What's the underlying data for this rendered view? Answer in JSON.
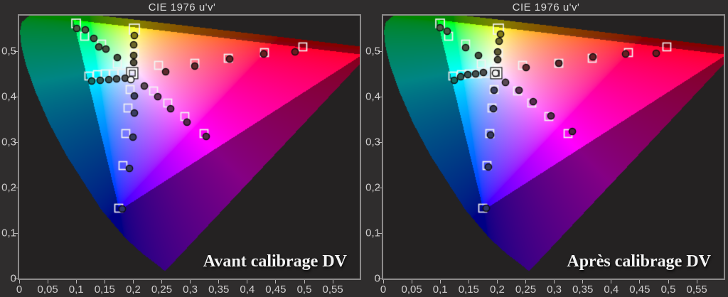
{
  "page": {
    "background": "#2f2d2d"
  },
  "cie": {
    "locus_uv": [
      [
        0.2558,
        0.0159
      ],
      [
        0.2443,
        0.028
      ],
      [
        0.2161,
        0.0549
      ],
      [
        0.1877,
        0.0871
      ],
      [
        0.1441,
        0.151
      ],
      [
        0.0828,
        0.2708
      ],
      [
        0.0521,
        0.3427
      ],
      [
        0.0282,
        0.4117
      ],
      [
        0.0119,
        0.4699
      ],
      [
        0.0035,
        0.5131
      ],
      [
        0.0014,
        0.5432
      ],
      [
        0.0046,
        0.5639
      ],
      [
        0.0231,
        0.5837
      ],
      [
        0.0501,
        0.5868
      ],
      [
        0.0792,
        0.5856
      ],
      [
        0.1127,
        0.5821
      ],
      [
        0.1531,
        0.5766
      ],
      [
        0.2026,
        0.5693
      ],
      [
        0.2623,
        0.5604
      ],
      [
        0.3315,
        0.5501
      ],
      [
        0.4034,
        0.5393
      ],
      [
        0.4692,
        0.5296
      ],
      [
        0.5202,
        0.5219
      ],
      [
        0.583,
        0.5125
      ],
      [
        0.6234,
        0.5065
      ]
    ],
    "display_gamut_uv": [
      [
        0.6022,
        0.4922
      ],
      [
        0.0948,
        0.5688
      ],
      [
        0.1758,
        0.15
      ]
    ],
    "outside_gamut_dim": 0.52
  },
  "chart_data": [
    {
      "type": "scatter",
      "title": "CIE 1976 u'v'",
      "annotation": "Avant calibrage DV",
      "xlabel": "",
      "ylabel": "",
      "x_ticks": [
        "0",
        "0,05",
        "0,1",
        "0,15",
        "0,2",
        "0,25",
        "0,3",
        "0,35",
        "0,4",
        "0,45",
        "0,5",
        "0,55"
      ],
      "y_ticks": [
        "0",
        "0,1",
        "0,2",
        "0,3",
        "0,4",
        "0,5"
      ],
      "xlim": [
        0,
        0.597
      ],
      "ylim": [
        0,
        0.578
      ],
      "grid": false,
      "legend": "none",
      "series": [
        {
          "name": "targets",
          "marker": "square",
          "color": "#f2f2f2",
          "points": [
            {
              "u": 0.0998,
              "v": 0.5609,
              "size": 12
            },
            {
              "u": 0.1147,
              "v": 0.5328
            },
            {
              "u": 0.1446,
              "v": 0.5156
            },
            {
              "u": 0.1721,
              "v": 0.4719
            },
            {
              "u": 0.202,
              "v": 0.5484,
              "size": 14
            },
            {
              "u": 0.202,
              "v": 0.4953
            },
            {
              "u": 0.1995,
              "v": 0.4625
            },
            {
              "u": 0.1222,
              "v": 0.4453
            },
            {
              "u": 0.1372,
              "v": 0.4484
            },
            {
              "u": 0.1509,
              "v": 0.45
            },
            {
              "u": 0.1658,
              "v": 0.45
            },
            {
              "u": 0.1808,
              "v": 0.4516
            },
            {
              "u": 0.2444,
              "v": 0.4688
            },
            {
              "u": 0.308,
              "v": 0.4734
            },
            {
              "u": 0.3666,
              "v": 0.4844
            },
            {
              "u": 0.4302,
              "v": 0.4969
            },
            {
              "u": 0.4975,
              "v": 0.5094
            },
            {
              "u": 0.2357,
              "v": 0.4125
            },
            {
              "u": 0.2606,
              "v": 0.3859
            },
            {
              "u": 0.2905,
              "v": 0.3563
            },
            {
              "u": 0.3242,
              "v": 0.3188
            },
            {
              "u": 0.1945,
              "v": 0.4156
            },
            {
              "u": 0.1908,
              "v": 0.375
            },
            {
              "u": 0.187,
              "v": 0.3188
            },
            {
              "u": 0.182,
              "v": 0.2484
            },
            {
              "u": 0.1746,
              "v": 0.1547
            }
          ]
        },
        {
          "name": "white-point-target",
          "marker": "square-bold",
          "color": "#ffffff",
          "points": [
            {
              "u": 0.1983,
              "v": 0.4516,
              "size": 12
            }
          ]
        },
        {
          "name": "measurements",
          "marker": "circle",
          "points": [
            {
              "u": 0.101,
              "v": 0.55,
              "color": "#4a5a44"
            },
            {
              "u": 0.116,
              "v": 0.5469,
              "color": "#4a5a44"
            },
            {
              "u": 0.1309,
              "v": 0.5281,
              "color": "#465741"
            },
            {
              "u": 0.1397,
              "v": 0.5094,
              "color": "#43533f"
            },
            {
              "u": 0.1521,
              "v": 0.5047,
              "color": "#43533f"
            },
            {
              "u": 0.1721,
              "v": 0.4859,
              "color": "#40503d"
            },
            {
              "u": 0.202,
              "v": 0.5344,
              "color": "#837d14"
            },
            {
              "u": 0.2008,
              "v": 0.5141,
              "color": "#6d682b"
            },
            {
              "u": 0.2008,
              "v": 0.4906,
              "color": "#5e5a33"
            },
            {
              "u": 0.2008,
              "v": 0.475,
              "color": "#514e3a"
            },
            {
              "u": 0.1272,
              "v": 0.4344,
              "color": "#116b60"
            },
            {
              "u": 0.1421,
              "v": 0.4359,
              "color": "#2f5c55"
            },
            {
              "u": 0.1571,
              "v": 0.4375,
              "color": "#3a5551"
            },
            {
              "u": 0.1708,
              "v": 0.4391,
              "color": "#44514f"
            },
            {
              "u": 0.1858,
              "v": 0.4406,
              "color": "#4c4f50"
            },
            {
              "u": 0.1958,
              "v": 0.4375,
              "color": "#f4f4f4"
            },
            {
              "u": 0.2195,
              "v": 0.4234,
              "color": "#5c4a56"
            },
            {
              "u": 0.2569,
              "v": 0.4547,
              "color": "#5e2a2e"
            },
            {
              "u": 0.308,
              "v": 0.4672,
              "color": "#61272b"
            },
            {
              "u": 0.3691,
              "v": 0.4828,
              "color": "#642226"
            },
            {
              "u": 0.4289,
              "v": 0.4938,
              "color": "#671f23"
            },
            {
              "u": 0.4838,
              "v": 0.4984,
              "color": "#6a1c20"
            },
            {
              "u": 0.2431,
              "v": 0.4,
              "color": "#5e3156"
            },
            {
              "u": 0.2656,
              "v": 0.3734,
              "color": "#5a2d51"
            },
            {
              "u": 0.2943,
              "v": 0.3438,
              "color": "#562a4c"
            },
            {
              "u": 0.3279,
              "v": 0.3125,
              "color": "#522746"
            },
            {
              "u": 0.202,
              "v": 0.4016,
              "color": "#3d4163"
            },
            {
              "u": 0.202,
              "v": 0.3641,
              "color": "#393e62"
            },
            {
              "u": 0.1995,
              "v": 0.3109,
              "color": "#353a61"
            },
            {
              "u": 0.1933,
              "v": 0.2422,
              "color": "#313763"
            },
            {
              "u": 0.1808,
              "v": 0.1531,
              "color": "#2d3468"
            }
          ]
        }
      ]
    },
    {
      "type": "scatter",
      "title": "CIE 1976 u'v'",
      "annotation": "Après calibrage DV",
      "xlabel": "",
      "ylabel": "",
      "x_ticks": [
        "0",
        "0,05",
        "0,1",
        "0,15",
        "0,2",
        "0,25",
        "0,3",
        "0,35",
        "0,4",
        "0,45",
        "0,5",
        "0,55"
      ],
      "y_ticks": [
        "0",
        "0,1",
        "0,2",
        "0,3",
        "0,4",
        "0,5"
      ],
      "xlim": [
        0,
        0.597
      ],
      "ylim": [
        0,
        0.578
      ],
      "grid": false,
      "legend": "none",
      "series": [
        {
          "name": "targets",
          "marker": "square",
          "color": "#f2f2f2",
          "points": [
            {
              "u": 0.0998,
              "v": 0.5609,
              "size": 12
            },
            {
              "u": 0.1147,
              "v": 0.5328
            },
            {
              "u": 0.1446,
              "v": 0.5156
            },
            {
              "u": 0.1721,
              "v": 0.4719
            },
            {
              "u": 0.202,
              "v": 0.5484,
              "size": 14
            },
            {
              "u": 0.202,
              "v": 0.4953
            },
            {
              "u": 0.1995,
              "v": 0.4625
            },
            {
              "u": 0.1222,
              "v": 0.4453
            },
            {
              "u": 0.1372,
              "v": 0.4484
            },
            {
              "u": 0.1509,
              "v": 0.45
            },
            {
              "u": 0.1658,
              "v": 0.45
            },
            {
              "u": 0.1808,
              "v": 0.4516
            },
            {
              "u": 0.2444,
              "v": 0.4688
            },
            {
              "u": 0.308,
              "v": 0.4734
            },
            {
              "u": 0.3666,
              "v": 0.4844
            },
            {
              "u": 0.4302,
              "v": 0.4969
            },
            {
              "u": 0.4975,
              "v": 0.5094
            },
            {
              "u": 0.2357,
              "v": 0.4125
            },
            {
              "u": 0.2606,
              "v": 0.3859
            },
            {
              "u": 0.2905,
              "v": 0.3563
            },
            {
              "u": 0.3242,
              "v": 0.3188
            },
            {
              "u": 0.1945,
              "v": 0.4156
            },
            {
              "u": 0.1908,
              "v": 0.375
            },
            {
              "u": 0.187,
              "v": 0.3188
            },
            {
              "u": 0.182,
              "v": 0.2484
            },
            {
              "u": 0.1746,
              "v": 0.1547
            }
          ]
        },
        {
          "name": "white-point-target",
          "marker": "square-bold",
          "color": "#ffffff",
          "points": [
            {
              "u": 0.1983,
              "v": 0.4516,
              "size": 12
            }
          ]
        },
        {
          "name": "measurements",
          "marker": "circle",
          "points": [
            {
              "u": 0.0998,
              "v": 0.5516,
              "color": "#4a5a44"
            },
            {
              "u": 0.1122,
              "v": 0.5438,
              "color": "#4a5a44"
            },
            {
              "u": 0.1446,
              "v": 0.5078,
              "color": "#43533f"
            },
            {
              "u": 0.1671,
              "v": 0.4906,
              "color": "#40503d"
            },
            {
              "u": 0.2058,
              "v": 0.5375,
              "color": "#837d14"
            },
            {
              "u": 0.2033,
              "v": 0.5219,
              "color": "#6d682b"
            },
            {
              "u": 0.2008,
              "v": 0.4984,
              "color": "#5e5a33"
            },
            {
              "u": 0.2008,
              "v": 0.4813,
              "color": "#514e3a"
            },
            {
              "u": 0.1247,
              "v": 0.4359,
              "color": "#116b60"
            },
            {
              "u": 0.1359,
              "v": 0.4438,
              "color": "#2f5c55"
            },
            {
              "u": 0.1484,
              "v": 0.4484,
              "color": "#3a5551"
            },
            {
              "u": 0.1621,
              "v": 0.45,
              "color": "#44514f"
            },
            {
              "u": 0.1758,
              "v": 0.4531,
              "color": "#4c4f50"
            },
            {
              "u": 0.197,
              "v": 0.4516,
              "color": "#f4f4f4"
            },
            {
              "u": 0.2145,
              "v": 0.4313,
              "color": "#5c4a56"
            },
            {
              "u": 0.2506,
              "v": 0.4641,
              "color": "#5e2a2e"
            },
            {
              "u": 0.308,
              "v": 0.4734,
              "color": "#61272b"
            },
            {
              "u": 0.3678,
              "v": 0.4875,
              "color": "#642226"
            },
            {
              "u": 0.4252,
              "v": 0.4938,
              "color": "#671f23"
            },
            {
              "u": 0.4788,
              "v": 0.4953,
              "color": "#6a1c20"
            },
            {
              "u": 0.2382,
              "v": 0.4141,
              "color": "#5e3156"
            },
            {
              "u": 0.2631,
              "v": 0.3891,
              "color": "#5a2d51"
            },
            {
              "u": 0.2943,
              "v": 0.3578,
              "color": "#562a4c"
            },
            {
              "u": 0.3317,
              "v": 0.3234,
              "color": "#522746"
            },
            {
              "u": 0.1945,
              "v": 0.4141,
              "color": "#3d4163"
            },
            {
              "u": 0.1933,
              "v": 0.3734,
              "color": "#393e62"
            },
            {
              "u": 0.1883,
              "v": 0.3156,
              "color": "#353a61"
            },
            {
              "u": 0.1845,
              "v": 0.2453,
              "color": "#313763"
            },
            {
              "u": 0.1808,
              "v": 0.1547,
              "color": "#2d3468"
            }
          ]
        }
      ]
    }
  ]
}
